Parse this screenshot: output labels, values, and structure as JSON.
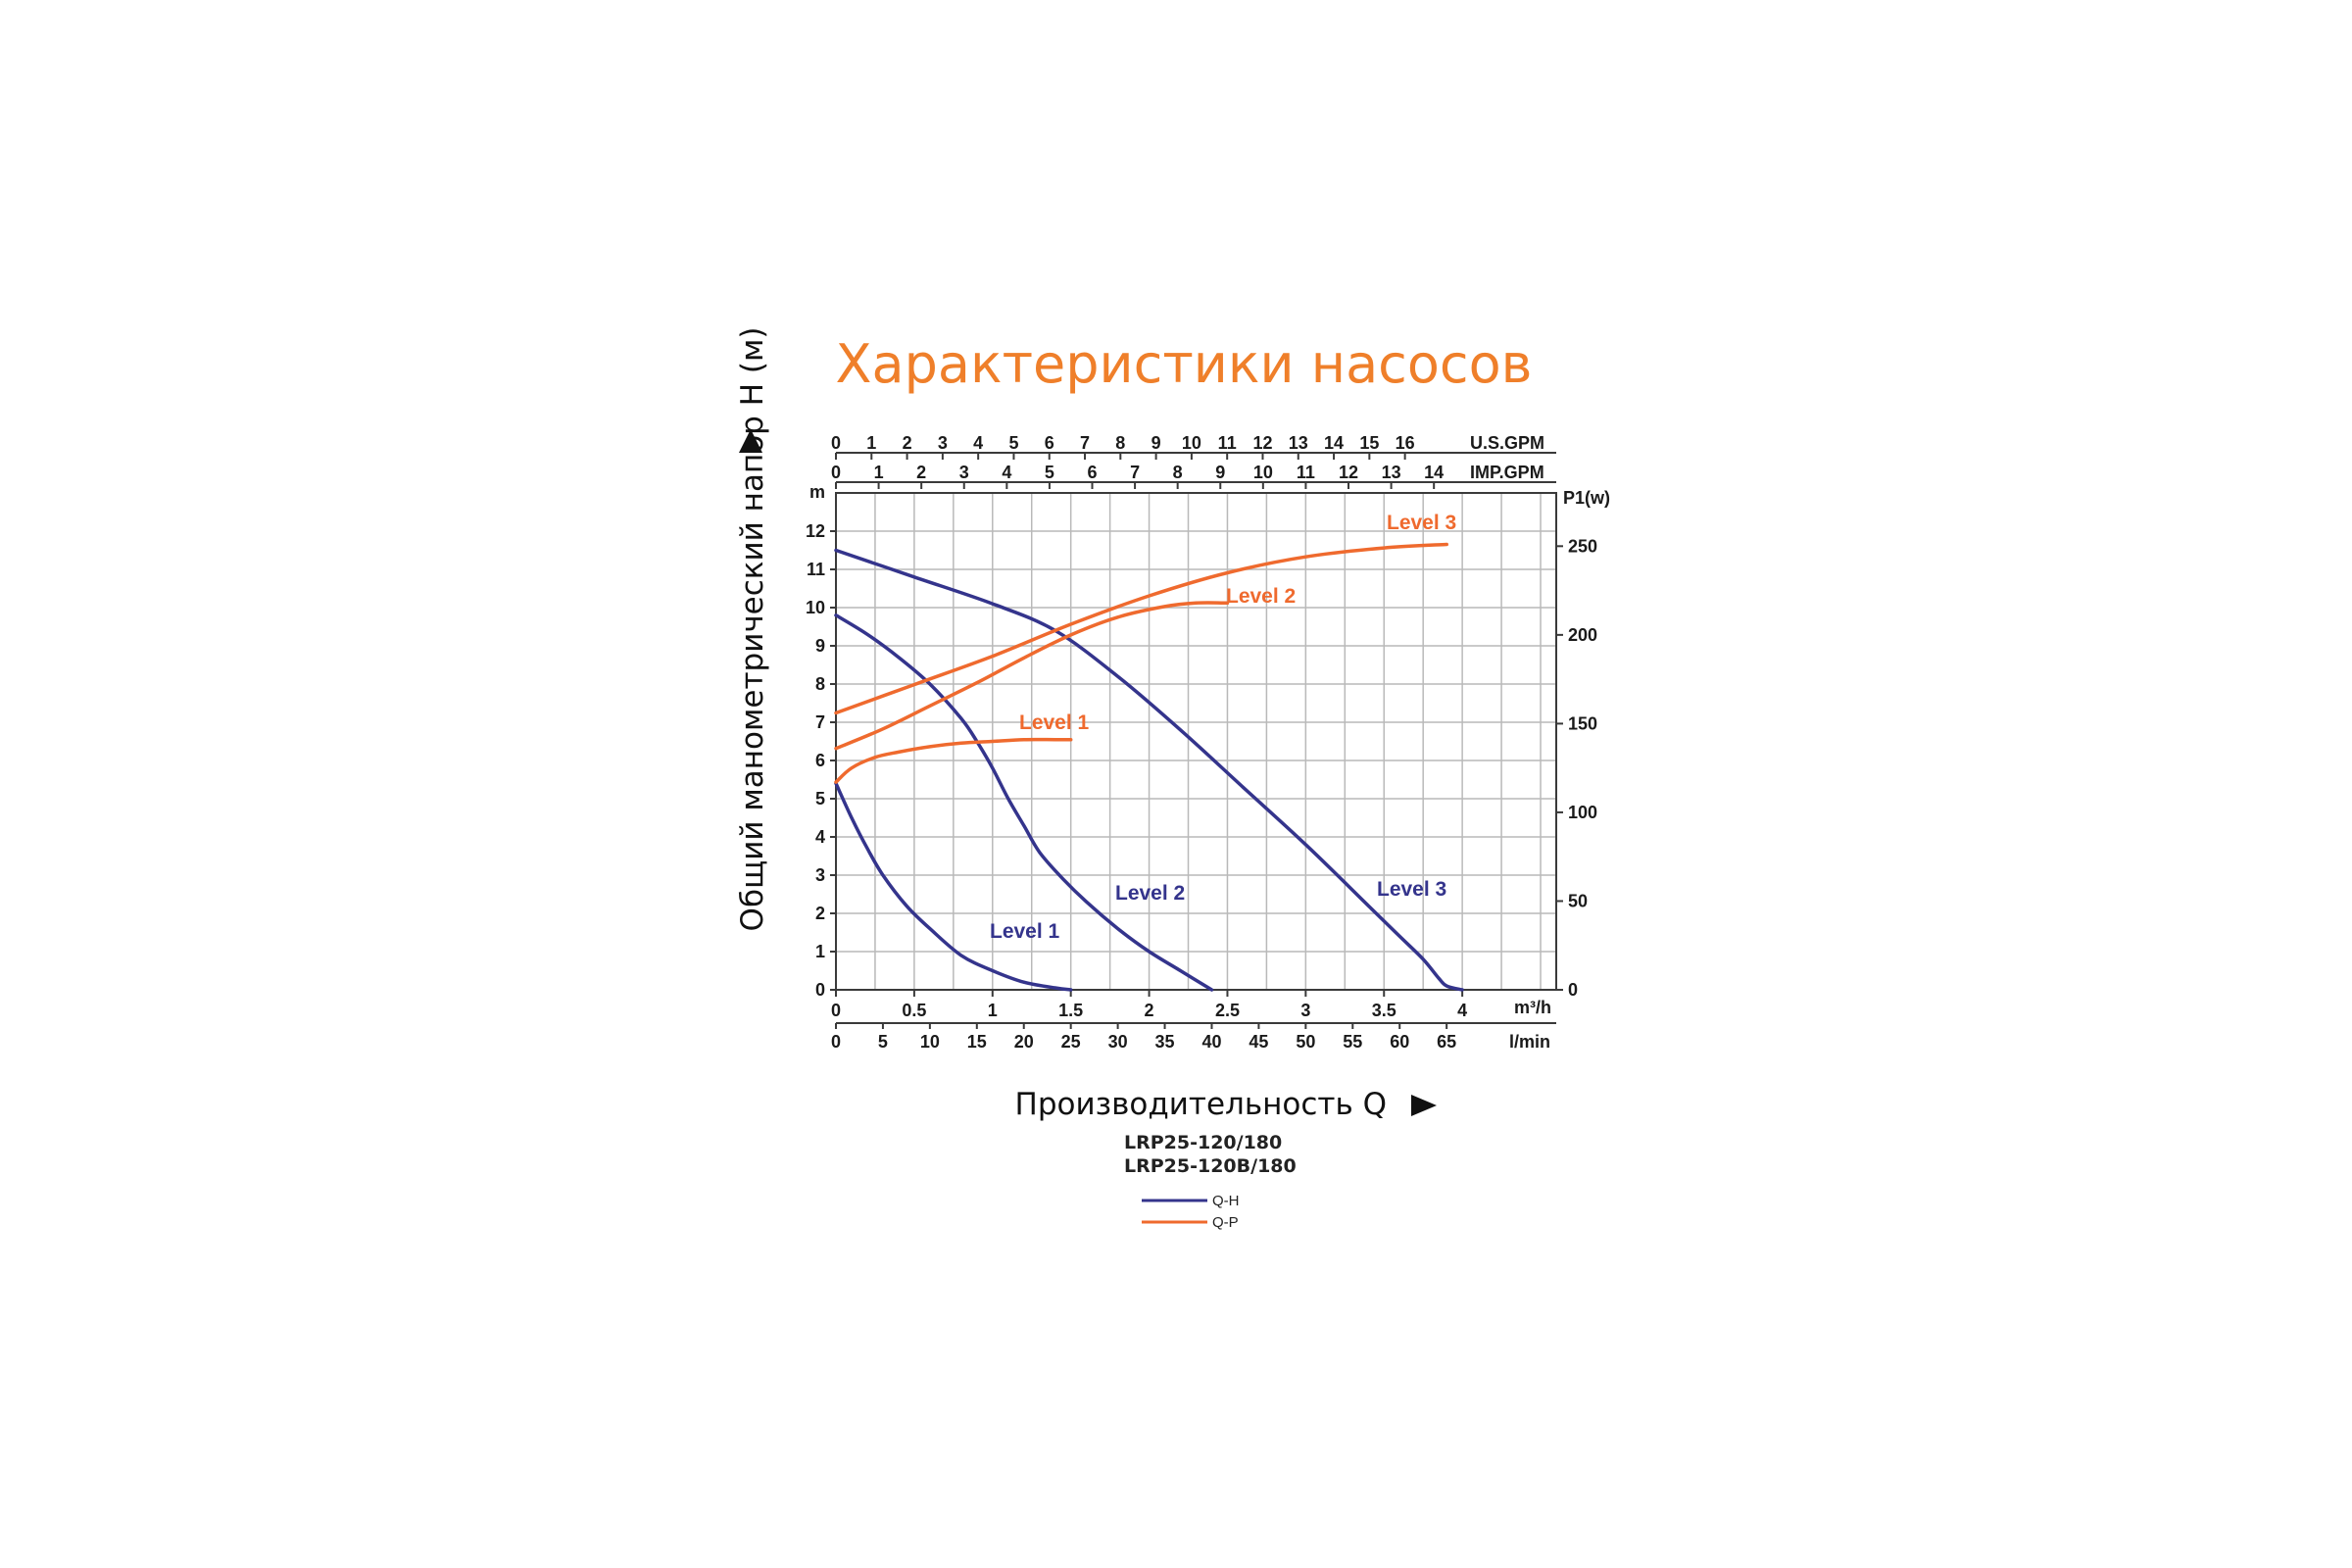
{
  "title": "Характеристики насосов",
  "y_axis_title": "Общий манометрический напор H (м)",
  "x_axis_title": "Производительность Q",
  "models": [
    "LRP25-120/180",
    "LRP25-120B/180"
  ],
  "legend": [
    {
      "label": "Q-H",
      "color": "#34348c"
    },
    {
      "label": "Q-P",
      "color": "#ef6a2e"
    }
  ],
  "chart_data": {
    "type": "line",
    "grid": true,
    "x_axes": {
      "m3h": {
        "label": "m³/h",
        "ticks": [
          "0",
          "0.5",
          "1",
          "1.5",
          "2",
          "2.5",
          "3",
          "3.5",
          "4"
        ],
        "range": [
          0,
          4.6
        ]
      },
      "lmin": {
        "label": "l/min",
        "ticks": [
          "0",
          "5",
          "10",
          "15",
          "20",
          "25",
          "30",
          "35",
          "40",
          "45",
          "50",
          "55",
          "60",
          "65"
        ]
      },
      "us_gpm": {
        "label": "U.S.GPM",
        "ticks": [
          "0",
          "1",
          "2",
          "3",
          "4",
          "5",
          "6",
          "7",
          "8",
          "9",
          "10",
          "11",
          "12",
          "13",
          "14",
          "15",
          "16"
        ]
      },
      "imp_gpm": {
        "label": "IMP.GPM",
        "ticks": [
          "0",
          "1",
          "2",
          "3",
          "4",
          "5",
          "6",
          "7",
          "8",
          "9",
          "10",
          "11",
          "12",
          "13",
          "14"
        ]
      }
    },
    "y_left": {
      "label": "m",
      "ticks": [
        "0",
        "1",
        "2",
        "3",
        "4",
        "5",
        "6",
        "7",
        "8",
        "9",
        "10",
        "11",
        "12"
      ],
      "range": [
        0,
        13
      ]
    },
    "y_right": {
      "label": "P1(w)",
      "ticks": [
        "0",
        "50",
        "100",
        "150",
        "200",
        "250"
      ],
      "range": [
        0,
        280
      ]
    },
    "series": [
      {
        "name": "Level 1",
        "kind": "Q-H",
        "axis": "left",
        "color": "#34348c",
        "x": [
          0,
          0.1,
          0.2,
          0.3,
          0.45,
          0.6,
          0.8,
          1.0,
          1.2,
          1.4,
          1.5
        ],
        "y": [
          5.4,
          4.5,
          3.7,
          3.0,
          2.2,
          1.6,
          0.9,
          0.5,
          0.2,
          0.05,
          0
        ]
      },
      {
        "name": "Level 2",
        "kind": "Q-H",
        "axis": "left",
        "color": "#34348c",
        "x": [
          0,
          0.2,
          0.4,
          0.6,
          0.8,
          0.9,
          1.0,
          1.1,
          1.2,
          1.3,
          1.45,
          1.6,
          1.8,
          2.0,
          2.2,
          2.4
        ],
        "y": [
          9.8,
          9.3,
          8.7,
          8.0,
          7.1,
          6.5,
          5.8,
          5.0,
          4.3,
          3.6,
          2.9,
          2.3,
          1.6,
          1.0,
          0.5,
          0
        ]
      },
      {
        "name": "Level 3",
        "kind": "Q-H",
        "axis": "left",
        "color": "#34348c",
        "x": [
          0,
          0.5,
          1.0,
          1.4,
          1.8,
          2.2,
          2.6,
          3.0,
          3.4,
          3.6,
          3.75,
          3.85,
          3.9,
          4.0
        ],
        "y": [
          11.5,
          10.8,
          10.1,
          9.4,
          8.2,
          6.8,
          5.3,
          3.8,
          2.2,
          1.4,
          0.8,
          0.3,
          0.1,
          0
        ]
      },
      {
        "name": "Level 1",
        "kind": "Q-P",
        "axis": "right",
        "color": "#ef6a2e",
        "x": [
          0,
          0.1,
          0.25,
          0.4,
          0.6,
          0.8,
          1.0,
          1.2,
          1.4,
          1.5
        ],
        "y": [
          117,
          125,
          131,
          134,
          137,
          139,
          140,
          141,
          141,
          141
        ]
      },
      {
        "name": "Level 2",
        "kind": "Q-P",
        "axis": "right",
        "color": "#ef6a2e",
        "x": [
          0,
          0.3,
          0.6,
          0.9,
          1.2,
          1.5,
          1.8,
          2.1,
          2.3,
          2.5
        ],
        "y": [
          136,
          147,
          160,
          173,
          187,
          200,
          210,
          216,
          218,
          218
        ]
      },
      {
        "name": "Level 3",
        "kind": "Q-P",
        "axis": "right",
        "color": "#ef6a2e",
        "x": [
          0,
          0.5,
          1.0,
          1.5,
          2.0,
          2.5,
          3.0,
          3.5,
          3.9
        ],
        "y": [
          156,
          172,
          188,
          206,
          222,
          235,
          244,
          249,
          251
        ]
      }
    ]
  }
}
